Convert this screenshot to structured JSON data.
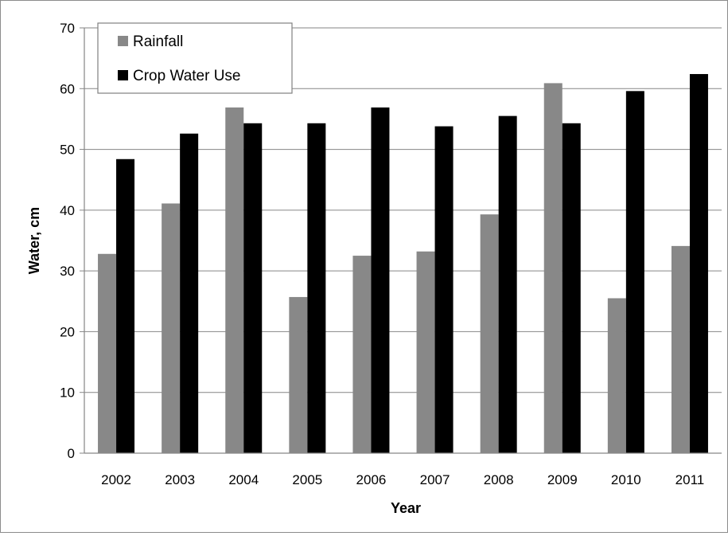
{
  "chart_data": {
    "type": "bar",
    "title": "",
    "xlabel": "Year",
    "ylabel": "Water, cm",
    "categories": [
      "2002",
      "2003",
      "2004",
      "2005",
      "2006",
      "2007",
      "2008",
      "2009",
      "2010",
      "2011"
    ],
    "series": [
      {
        "name": "Rainfall",
        "color": "#888888",
        "values": [
          32.8,
          41.1,
          56.9,
          25.7,
          32.5,
          33.2,
          39.3,
          60.9,
          25.5,
          34.1
        ]
      },
      {
        "name": "Crop Water Use",
        "color": "#000000",
        "values": [
          48.4,
          52.6,
          54.3,
          54.3,
          56.9,
          53.8,
          55.5,
          54.3,
          59.6,
          62.4
        ]
      }
    ],
    "ylim": [
      0,
      70
    ],
    "yticks": [
      "0",
      "10",
      "20",
      "30",
      "40",
      "50",
      "60",
      "70"
    ],
    "grid": true,
    "legend_position": "top-left"
  }
}
